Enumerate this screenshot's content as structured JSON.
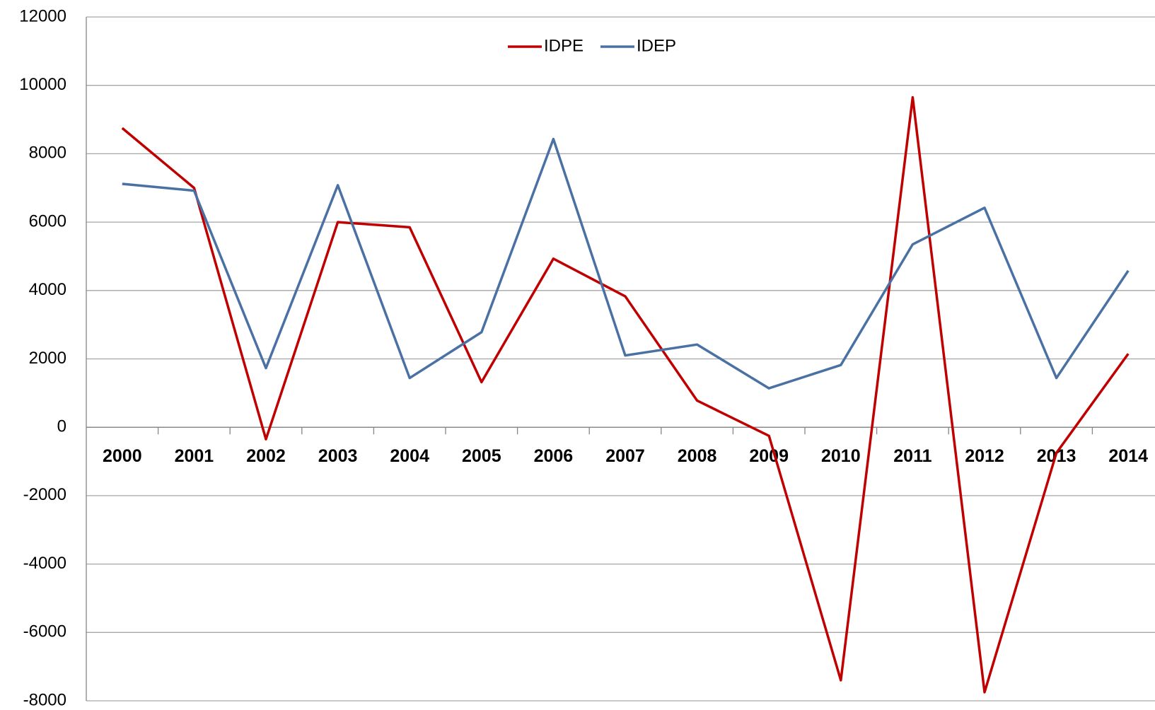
{
  "chart_data": {
    "type": "line",
    "categories": [
      "2000",
      "2001",
      "2002",
      "2003",
      "2004",
      "2005",
      "2006",
      "2007",
      "2008",
      "2009",
      "2010",
      "2011",
      "2012",
      "2013",
      "2014"
    ],
    "series": [
      {
        "name": "IDPE",
        "color": "#c00000",
        "values": [
          8750,
          7000,
          -350,
          6000,
          5850,
          1320,
          4930,
          3830,
          780,
          -250,
          -7400,
          9650,
          -7750,
          -750,
          2150
        ]
      },
      {
        "name": "IDEP",
        "color": "#4a71a3",
        "values": [
          7120,
          6920,
          1730,
          7080,
          1440,
          2780,
          8430,
          2100,
          2420,
          1140,
          1820,
          5350,
          6420,
          1440,
          4580
        ]
      }
    ],
    "ylim": [
      -8000,
      12000
    ],
    "yticks": [
      -8000,
      -6000,
      -4000,
      -2000,
      0,
      2000,
      4000,
      6000,
      8000,
      10000,
      12000
    ],
    "grid": true,
    "legend": "top"
  }
}
